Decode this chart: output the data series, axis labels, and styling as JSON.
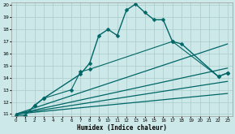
{
  "xlabel": "Humidex (Indice chaleur)",
  "bg_color": "#cce8e8",
  "grid_color": "#aacccc",
  "line_color": "#006666",
  "xlim": [
    -0.5,
    23.5
  ],
  "ylim": [
    10.8,
    20.2
  ],
  "xticks": [
    0,
    1,
    2,
    3,
    4,
    5,
    6,
    7,
    8,
    9,
    10,
    11,
    12,
    13,
    14,
    15,
    16,
    17,
    18,
    19,
    20,
    21,
    22,
    23
  ],
  "yticks": [
    11,
    12,
    13,
    14,
    15,
    16,
    17,
    18,
    19,
    20
  ],
  "series": [
    {
      "x": [
        0,
        1,
        2,
        3,
        7,
        8,
        9,
        10,
        11,
        12,
        13,
        14,
        15,
        16,
        17,
        18,
        22,
        23
      ],
      "y": [
        10.9,
        10.9,
        11.7,
        12.3,
        14.3,
        15.2,
        17.5,
        18.0,
        17.5,
        19.6,
        20.1,
        19.4,
        18.8,
        18.8,
        17.0,
        16.8,
        14.1,
        14.4
      ],
      "marker": "D",
      "markersize": 2.5,
      "linewidth": 1.0,
      "linestyle": "-"
    },
    {
      "x": [
        2,
        3,
        6,
        7,
        8,
        17,
        22,
        23
      ],
      "y": [
        11.7,
        12.3,
        13.0,
        14.5,
        14.7,
        17.0,
        14.1,
        14.4
      ],
      "marker": "D",
      "markersize": 2.5,
      "linewidth": 0.8,
      "linestyle": "-"
    },
    {
      "x": [
        0,
        23
      ],
      "y": [
        11.0,
        16.8
      ],
      "marker": null,
      "markersize": 0,
      "linewidth": 0.9,
      "linestyle": "-"
    },
    {
      "x": [
        0,
        23
      ],
      "y": [
        11.0,
        14.8
      ],
      "marker": null,
      "markersize": 0,
      "linewidth": 0.9,
      "linestyle": "-"
    },
    {
      "x": [
        0,
        23
      ],
      "y": [
        11.0,
        13.7
      ],
      "marker": null,
      "markersize": 0,
      "linewidth": 0.9,
      "linestyle": "-"
    },
    {
      "x": [
        0,
        23
      ],
      "y": [
        11.0,
        12.7
      ],
      "marker": null,
      "markersize": 0,
      "linewidth": 0.9,
      "linestyle": "-"
    }
  ]
}
